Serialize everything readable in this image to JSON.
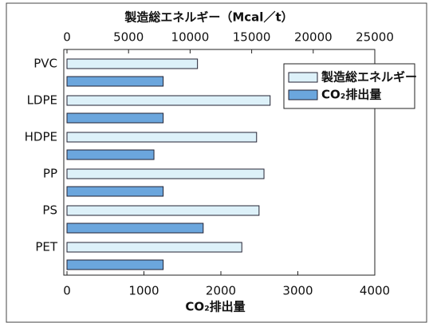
{
  "chart_data": {
    "type": "bar",
    "orientation": "horizontal",
    "title": "製造総エネルギー（Mcal／t）",
    "xlabel": "CO₂排出量",
    "categories": [
      "PVC",
      "LDPE",
      "HDPE",
      "PP",
      "PS",
      "PET"
    ],
    "series": [
      {
        "name": "製造総エネルギー",
        "color": "#ddf1f9",
        "axis": "x2",
        "values": [
          10600,
          16500,
          15400,
          16000,
          15600,
          14200
        ]
      },
      {
        "name": "CO₂排出量",
        "color": "#6ba6dd",
        "values": [
          1250,
          1250,
          1130,
          1250,
          1770,
          1250
        ]
      }
    ],
    "xlim": [
      0,
      4000
    ],
    "xticks": [
      0,
      1000,
      2000,
      3000,
      4000
    ],
    "x2lim": [
      0,
      25000
    ],
    "x2ticks": [
      0,
      5000,
      10000,
      15000,
      20000,
      25000
    ],
    "grid": false
  }
}
